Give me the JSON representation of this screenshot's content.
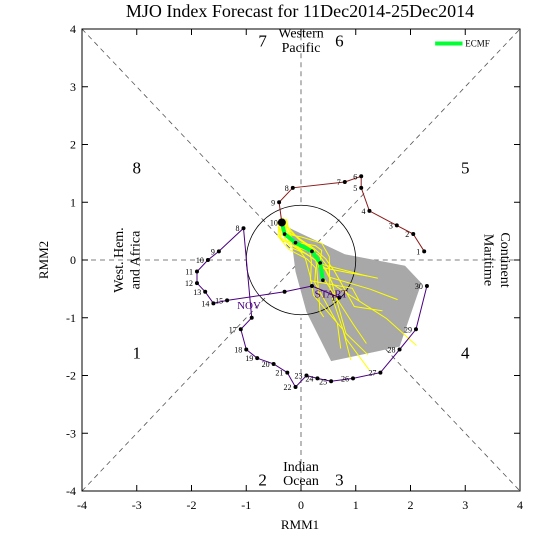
{
  "chart_data": {
    "type": "line",
    "title": "MJO Index Forecast for 11Dec2014-25Dec2014",
    "xlabel": "RMM1",
    "ylabel": "RMM2",
    "xlim": [
      -4,
      4
    ],
    "ylim": [
      -4,
      4
    ],
    "x_ticks": [
      "-4",
      "-3",
      "-2",
      "-1",
      "0",
      "1",
      "2",
      "3",
      "4"
    ],
    "y_ticks": [
      "-4",
      "-3",
      "-2",
      "-1",
      "0",
      "1",
      "2",
      "3",
      "4"
    ],
    "unit_circle_radius": 1,
    "grid": false,
    "legend": {
      "position": "top-right",
      "entries": [
        {
          "name": "ECMF",
          "color": "#00ff33"
        }
      ]
    },
    "phase_numbers": [
      {
        "label": "1",
        "x": -3.0,
        "y": -1.6
      },
      {
        "label": "2",
        "x": -0.7,
        "y": -3.8
      },
      {
        "label": "3",
        "x": 0.7,
        "y": -3.8
      },
      {
        "label": "4",
        "x": 3.0,
        "y": -1.6
      },
      {
        "label": "5",
        "x": 3.0,
        "y": 1.6
      },
      {
        "label": "6",
        "x": 0.7,
        "y": 3.8
      },
      {
        "label": "7",
        "x": -0.7,
        "y": 3.8
      },
      {
        "label": "8",
        "x": -3.0,
        "y": 1.6
      }
    ],
    "region_labels": {
      "top": [
        "Western",
        "Pacific"
      ],
      "bottom": [
        "Indian",
        "Ocean"
      ],
      "left": [
        "West. Hem.",
        "and Africa"
      ],
      "right": [
        "Maritime",
        "Continent"
      ]
    },
    "markers": {
      "start": "START",
      "now": "NOV"
    },
    "colors": {
      "observed_nov": "#4b0082",
      "observed_dec": "#8b1a1a",
      "ensemble": "#ffff00",
      "ensemble_mean": "#00ff33",
      "spread": "#a8a8a8",
      "points": "#000000"
    },
    "series": [
      {
        "name": "November",
        "points": [
          {
            "day": "1",
            "x": 0.7,
            "y": -0.65
          },
          {
            "day": "",
            "x": 0.2,
            "y": -0.45
          },
          {
            "day": "",
            "x": -0.3,
            "y": -0.55
          },
          {
            "day": "15",
            "x": -1.35,
            "y": -0.7
          },
          {
            "day": "14",
            "x": -1.6,
            "y": -0.75
          },
          {
            "day": "13",
            "x": -1.75,
            "y": -0.55
          },
          {
            "day": "12",
            "x": -1.9,
            "y": -0.4
          },
          {
            "day": "11",
            "x": -1.9,
            "y": -0.2
          },
          {
            "day": "10",
            "x": -1.7,
            "y": 0.0
          },
          {
            "day": "9",
            "x": -1.5,
            "y": 0.15
          },
          {
            "day": "8",
            "x": -1.05,
            "y": 0.55
          },
          {
            "day": "",
            "x": -0.9,
            "y": -1.0
          },
          {
            "day": "17",
            "x": -1.1,
            "y": -1.2
          },
          {
            "day": "18",
            "x": -1.0,
            "y": -1.55
          },
          {
            "day": "19",
            "x": -0.8,
            "y": -1.7
          },
          {
            "day": "20",
            "x": -0.5,
            "y": -1.8
          },
          {
            "day": "21",
            "x": -0.25,
            "y": -1.95
          },
          {
            "day": "22",
            "x": -0.1,
            "y": -2.2
          },
          {
            "day": "23",
            "x": 0.1,
            "y": -2.0
          },
          {
            "day": "24",
            "x": 0.3,
            "y": -2.05
          },
          {
            "day": "25",
            "x": 0.55,
            "y": -2.1
          },
          {
            "day": "26",
            "x": 0.95,
            "y": -2.05
          },
          {
            "day": "27",
            "x": 1.45,
            "y": -1.95
          },
          {
            "day": "28",
            "x": 1.8,
            "y": -1.55
          },
          {
            "day": "29",
            "x": 2.1,
            "y": -1.2
          },
          {
            "day": "30",
            "x": 2.3,
            "y": -0.45
          }
        ]
      },
      {
        "name": "December",
        "points": [
          {
            "day": "1",
            "x": 2.25,
            "y": 0.15
          },
          {
            "day": "2",
            "x": 2.05,
            "y": 0.45
          },
          {
            "day": "3",
            "x": 1.75,
            "y": 0.6
          },
          {
            "day": "4",
            "x": 1.25,
            "y": 0.85
          },
          {
            "day": "5",
            "x": 1.1,
            "y": 1.25
          },
          {
            "day": "6",
            "x": 1.1,
            "y": 1.45
          },
          {
            "day": "7",
            "x": 0.8,
            "y": 1.35
          },
          {
            "day": "8",
            "x": -0.15,
            "y": 1.25
          },
          {
            "day": "9",
            "x": -0.4,
            "y": 1.0
          },
          {
            "day": "10",
            "x": -0.35,
            "y": 0.65
          }
        ]
      },
      {
        "name": "ECMF",
        "points": [
          {
            "day": "",
            "x": -0.35,
            "y": 0.65
          },
          {
            "day": "",
            "x": -0.3,
            "y": 0.45
          },
          {
            "day": "",
            "x": -0.1,
            "y": 0.3
          },
          {
            "day": "",
            "x": 0.2,
            "y": 0.15
          },
          {
            "day": "",
            "x": 0.35,
            "y": -0.05
          },
          {
            "day": "",
            "x": 0.4,
            "y": -0.35
          }
        ]
      }
    ],
    "ensemble_count": 12,
    "spread_polygon": [
      {
        "x": -0.2,
        "y": 0.55
      },
      {
        "x": 0.8,
        "y": 0.1
      },
      {
        "x": 1.9,
        "y": -0.1
      },
      {
        "x": 2.2,
        "y": -0.4
      },
      {
        "x": 1.8,
        "y": -1.5
      },
      {
        "x": 0.55,
        "y": -1.75
      },
      {
        "x": 0.1,
        "y": -0.9
      },
      {
        "x": -0.1,
        "y": -0.2
      }
    ]
  }
}
